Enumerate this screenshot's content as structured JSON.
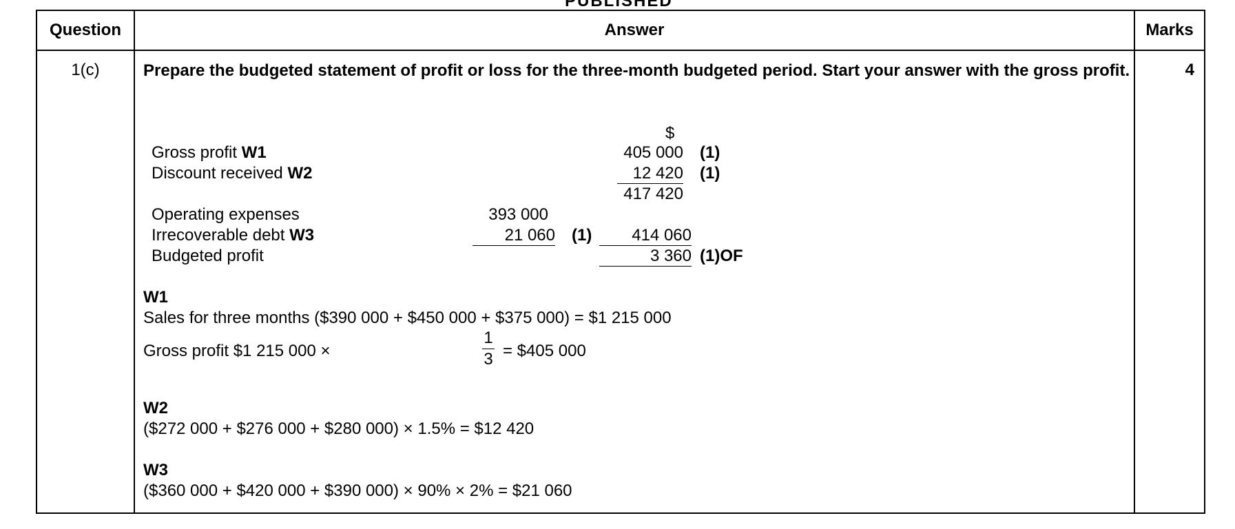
{
  "top_label": "PUBLISHED",
  "headers": {
    "question": "Question",
    "answer": "Answer",
    "marks": "Marks"
  },
  "question_ref": "1(c)",
  "marks": "4",
  "prompt": "Prepare the budgeted statement of profit or loss for the three-month budgeted period. Start your answer with the gross profit.",
  "statement": {
    "currency": "$",
    "rows": {
      "gross_profit": {
        "label": "Gross profit ",
        "ref": "W1",
        "total": "405 000",
        "mark": "(1)"
      },
      "discount": {
        "label": "Discount received ",
        "ref": "W2",
        "total": "12 420",
        "mark": "(1)"
      },
      "subtotal": {
        "total": "417 420"
      },
      "operating": {
        "label": "Operating expenses",
        "amount": "393 000"
      },
      "irrecoverable": {
        "label": "Irrecoverable debt ",
        "ref": "W3",
        "amount": "21 060",
        "mark": "(1)",
        "total": "414 060"
      },
      "budgeted": {
        "label": "Budgeted profit",
        "total": "3 360",
        "mark": "(1)OF"
      }
    }
  },
  "workings": {
    "w1": {
      "title": "W1",
      "line1": "Sales for three months ($390 000 + $450 000 + $375 000) = $1 215 000",
      "line2_pre": "Gross profit $1 215 000 ×",
      "frac_num": "1",
      "frac_den": "3",
      "line2_post": "= $405 000"
    },
    "w2": {
      "title": "W2",
      "line": "($272 000 + $276 000 + $280 000) × 1.5% = $12 420"
    },
    "w3": {
      "title": "W3",
      "line": "($360 000 + $420 000 + $390 000) × 90% × 2% = $21 060"
    }
  }
}
